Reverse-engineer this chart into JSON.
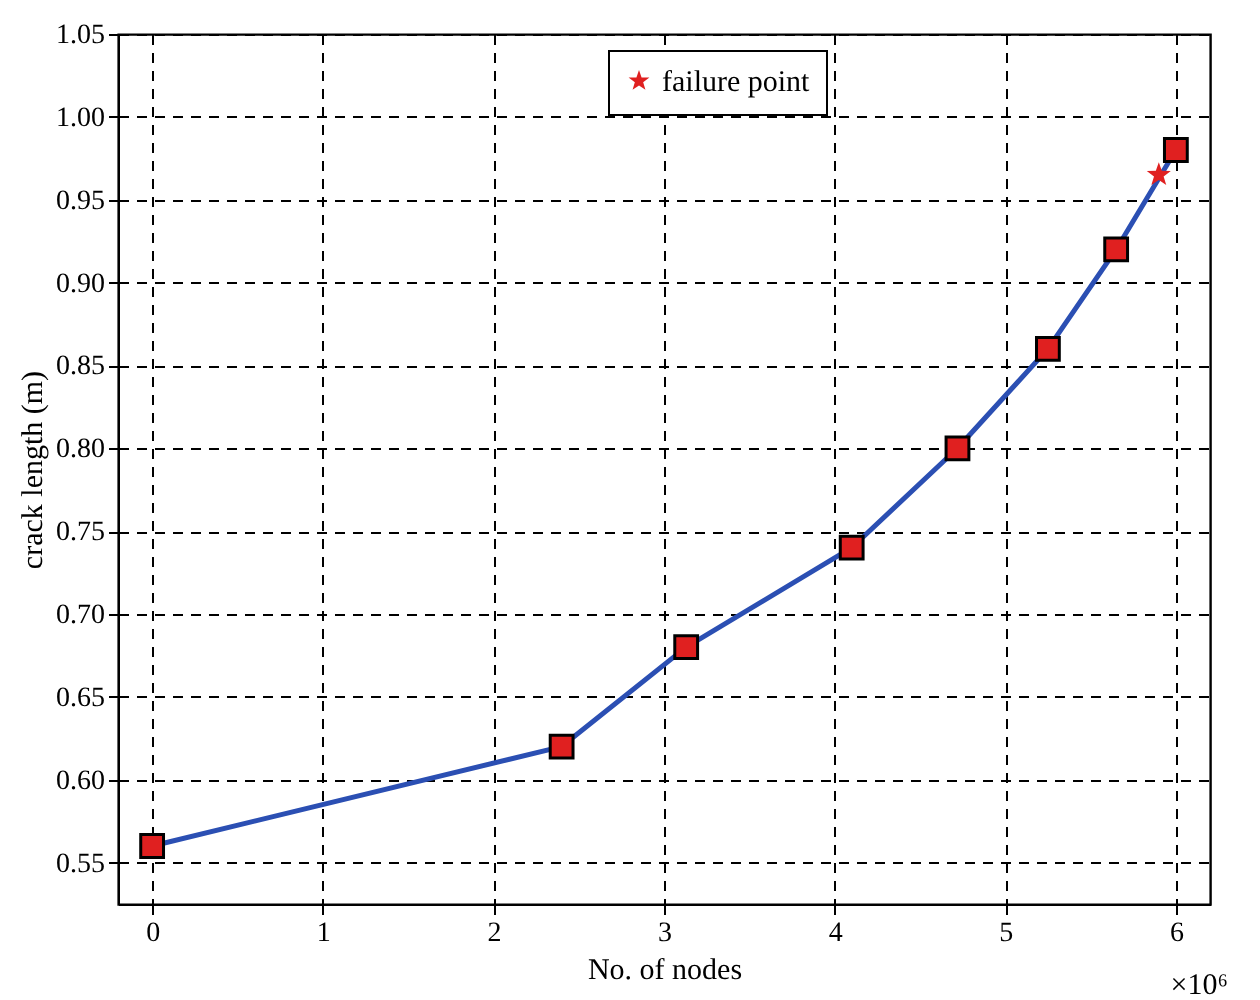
{
  "chart_data": {
    "type": "line",
    "xlabel": "No. of nodes",
    "ylabel": "crack length (m)",
    "annotations": [
      "×10⁶"
    ],
    "xlim": [
      -0.2,
      6.2
    ],
    "xticks": [
      0,
      1,
      2,
      3,
      4,
      5,
      6
    ],
    "ylim": [
      0.525,
      1.05
    ],
    "yticks": [
      0.55,
      {
        "value": 0.6,
        "label": "0.60"
      },
      0.65,
      {
        "value": 0.7,
        "label": "0.70"
      },
      0.75,
      {
        "value": 0.8,
        "label": "0.80"
      },
      0.85,
      {
        "value": 0.9,
        "label": "0.90"
      },
      0.95,
      {
        "value": 1.0,
        "label": "1.00"
      },
      1.05
    ],
    "grid": true,
    "legend": "top",
    "line_style": "solid",
    "series": [
      {
        "color": "#2b4fb3",
        "colors": [
          "#e02020",
          "#e02020",
          "#e02020",
          "#e02020",
          "#e02020",
          "#e02020",
          "#e02020",
          "#e02020"
        ],
        "marker": "square",
        "x": [
          0,
          2.4,
          3.13,
          4.1,
          4.72,
          5.25,
          5.65,
          6.0
        ],
        "values": [
          0.56,
          0.62,
          0.68,
          0.74,
          0.8,
          0.86,
          0.92,
          0.98
        ]
      },
      {
        "type": "scatter",
        "name": "failure point",
        "color": "#e02020",
        "marker": "star",
        "x": [
          5.9
        ],
        "values": [
          0.965
        ]
      }
    ]
  }
}
